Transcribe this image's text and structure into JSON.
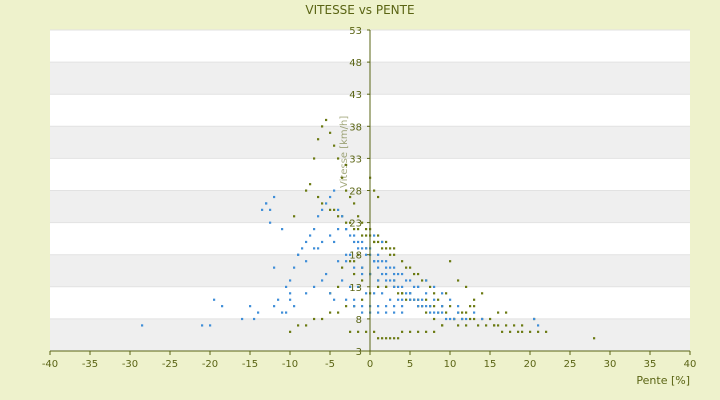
{
  "chart_data": {
    "type": "scatter",
    "title": "VITESSE vs PENTE",
    "xlabel": "Pente [%]",
    "ylabel": "Vitesse [km/h]",
    "xlim": [
      -40,
      40
    ],
    "ylim": [
      3,
      53
    ],
    "x_ticks": [
      -40,
      -35,
      -30,
      -25,
      -20,
      -15,
      -10,
      -5,
      0,
      5,
      10,
      15,
      20,
      25,
      30,
      35,
      40
    ],
    "y_ticks": [
      3,
      8,
      13,
      18,
      23,
      28,
      33,
      38,
      43,
      48,
      53
    ],
    "grid": true,
    "legend": "none",
    "background_color": "#eef2cc",
    "plot_colors": {
      "band_light": "#ffffff",
      "band_dark": "#efefef",
      "axis": "#5a6414"
    },
    "series": [
      {
        "color": "#6b7a12",
        "x": [
          -9.5,
          -8.0,
          -7.0,
          -6.5,
          -6.0,
          -5.5,
          -5.0,
          -4.5,
          -4.0,
          -3.5,
          -3.0,
          -3.0,
          -2.5,
          -2.0,
          -1.5,
          -1.0,
          -0.5,
          0.0,
          0.5,
          1.0,
          -6.0,
          -5.0,
          -4.0,
          -3.0,
          -2.0,
          -1.0,
          0.0,
          1.0,
          2.0,
          3.0,
          -7.5,
          -6.5,
          -4.5,
          -3.5,
          -2.5,
          -1.5,
          -0.5,
          0.5,
          1.5,
          2.5,
          -2.0,
          -1.0,
          0.0,
          1.0,
          2.0,
          3.0,
          4.0,
          5.0,
          6.0,
          7.0,
          8.0,
          9.0,
          10.0,
          11.0,
          12.0,
          13.0,
          14.0,
          15.0,
          16.0,
          17.0,
          18.0,
          19.0,
          20.0,
          21.0,
          3.5,
          4.5,
          5.5,
          6.5,
          7.5,
          8.5,
          9.5,
          10.5,
          11.5,
          12.5,
          13.5,
          14.5,
          15.5,
          16.5,
          17.5,
          18.5,
          -10.0,
          -9.0,
          -8.0,
          -7.0,
          -6.0,
          -5.0,
          -4.0,
          -3.0,
          -2.0,
          -1.0,
          0.0,
          1.0,
          2.0,
          3.0,
          4.0,
          5.0,
          6.0,
          7.0,
          8.0,
          9.0,
          -1.5,
          -0.5,
          0.5,
          1.5,
          2.5,
          -2.5,
          -3.5,
          0.0,
          1.0,
          2.0,
          3.0,
          -1.0,
          -2.0,
          -4.0,
          -5.0,
          4.0,
          5.0,
          6.0,
          7.0,
          8.0,
          9.5,
          10.0,
          11.0,
          12.0,
          13.0,
          14.0,
          9.0,
          10.5,
          11.5,
          12.5,
          7.0,
          7.5,
          8.0,
          8.5,
          6.0,
          6.5,
          5.0,
          5.5,
          4.0,
          4.5,
          1.0,
          1.5,
          2.0,
          2.5,
          3.0,
          3.5,
          0.5,
          -0.5,
          -1.5,
          -2.5,
          28.0,
          22.0,
          19.0,
          20.5,
          15.5,
          16.0,
          13.0,
          17.0,
          11.0,
          12.0
        ],
        "y": [
          24,
          28,
          33,
          36,
          38,
          39,
          37,
          35,
          33,
          30,
          32,
          28,
          27,
          26,
          24,
          23,
          22,
          30,
          28,
          27,
          26,
          25,
          24,
          23,
          22,
          21,
          21,
          20,
          19,
          18,
          29,
          27,
          25,
          24,
          23,
          22,
          21,
          20,
          19,
          18,
          17,
          16,
          15,
          14,
          13,
          13,
          12,
          12,
          11,
          11,
          10,
          10,
          10,
          9,
          9,
          8,
          8,
          8,
          7,
          7,
          7,
          7,
          6,
          6,
          12,
          11,
          11,
          10,
          10,
          9,
          9,
          8,
          8,
          8,
          7,
          7,
          7,
          6,
          6,
          6,
          6,
          7,
          7,
          8,
          8,
          9,
          9,
          10,
          10,
          11,
          12,
          13,
          13,
          14,
          12,
          11,
          10,
          9,
          8,
          7,
          18,
          19,
          20,
          20,
          19,
          17,
          16,
          22,
          21,
          20,
          19,
          14,
          15,
          13,
          12,
          6,
          6,
          6,
          6,
          6,
          12,
          17,
          14,
          13,
          11,
          12,
          7,
          8,
          9,
          10,
          14,
          13,
          12,
          11,
          15,
          14,
          16,
          15,
          17,
          16,
          5,
          5,
          5,
          5,
          5,
          5,
          6,
          6,
          6,
          6,
          5,
          6,
          6,
          8,
          7,
          9,
          10,
          9,
          7,
          7
        ]
      },
      {
        "color": "#3f8ed8",
        "x": [
          -28.5,
          -21.0,
          -20.0,
          -19.5,
          -16.0,
          -15.0,
          -14.0,
          -13.5,
          -13.0,
          -12.5,
          -12.0,
          -11.5,
          -11.0,
          -10.5,
          -10.0,
          -9.5,
          -9.0,
          -8.5,
          -8.0,
          -7.5,
          -7.0,
          -6.5,
          -6.0,
          -5.5,
          -5.0,
          -4.5,
          -4.0,
          -3.5,
          -3.0,
          -2.5,
          -2.0,
          -1.5,
          -1.0,
          -0.5,
          0.0,
          0.5,
          1.0,
          1.5,
          2.0,
          2.5,
          3.0,
          3.5,
          4.0,
          4.5,
          5.0,
          5.5,
          6.0,
          6.5,
          7.0,
          7.5,
          8.0,
          8.5,
          9.0,
          9.5,
          10.0,
          10.5,
          11.0,
          11.5,
          12.0,
          20.5,
          -12.0,
          -9.0,
          -8.0,
          -7.0,
          -6.0,
          -5.0,
          -4.0,
          -3.0,
          -2.0,
          -1.0,
          0.0,
          1.0,
          2.0,
          3.0,
          4.0,
          5.0,
          6.0,
          7.0,
          8.0,
          9.0,
          -4.0,
          -3.0,
          -2.0,
          -1.0,
          0.0,
          1.0,
          2.0,
          3.0,
          -3.5,
          -2.5,
          -1.5,
          -0.5,
          0.5,
          1.5,
          2.5,
          3.5,
          -2.0,
          -1.0,
          0.0,
          1.0,
          2.0,
          3.0,
          4.0,
          5.0,
          6.0,
          -5.0,
          -4.5,
          -3.0,
          -2.0,
          -1.0,
          0.0,
          1.0,
          2.0,
          3.0,
          4.0,
          -6.0,
          -5.5,
          -7.0,
          -8.0,
          -10.0,
          -11.0,
          -13.0,
          -12.5,
          13.0,
          14.0,
          11.0,
          10.0,
          9.0,
          8.0,
          7.0,
          6.0,
          5.0,
          4.0,
          -3.0,
          -1.0,
          1.0,
          2.0,
          3.0,
          0.5,
          1.5,
          -9.5,
          -10.5,
          -6.5,
          -4.5,
          -2.5,
          -1.5,
          -0.5,
          0.5,
          1.5,
          2.5,
          3.5,
          4.5,
          5.5,
          6.5,
          7.5,
          21.0,
          -18.5,
          -14.5,
          -12.0,
          -10.0
        ],
        "y": [
          7,
          7,
          7,
          11,
          8,
          10,
          9,
          25,
          26,
          23,
          27,
          11,
          9,
          13,
          14,
          16,
          18,
          19,
          20,
          21,
          22,
          24,
          25,
          26,
          27,
          28,
          25,
          24,
          22,
          21,
          20,
          20,
          19,
          18,
          18,
          17,
          16,
          15,
          15,
          14,
          14,
          13,
          13,
          12,
          12,
          11,
          11,
          10,
          10,
          10,
          9,
          9,
          9,
          8,
          8,
          8,
          9,
          8,
          8,
          8,
          16,
          18,
          17,
          19,
          20,
          21,
          22,
          22,
          21,
          20,
          19,
          18,
          17,
          16,
          15,
          14,
          13,
          12,
          11,
          10,
          17,
          17,
          16,
          15,
          15,
          14,
          14,
          13,
          14,
          13,
          13,
          12,
          12,
          12,
          11,
          11,
          11,
          10,
          10,
          10,
          10,
          10,
          10,
          11,
          10,
          12,
          11,
          11,
          10,
          9,
          9,
          9,
          9,
          9,
          9,
          14,
          15,
          13,
          12,
          11,
          22,
          26,
          25,
          9,
          8,
          10,
          11,
          12,
          13,
          14,
          13,
          12,
          11,
          18,
          16,
          17,
          16,
          15,
          21,
          20,
          10,
          9,
          19,
          20,
          18,
          19,
          19,
          17,
          17,
          16,
          15,
          14,
          13,
          11,
          9,
          7,
          10,
          8,
          10,
          12
        ]
      }
    ]
  }
}
